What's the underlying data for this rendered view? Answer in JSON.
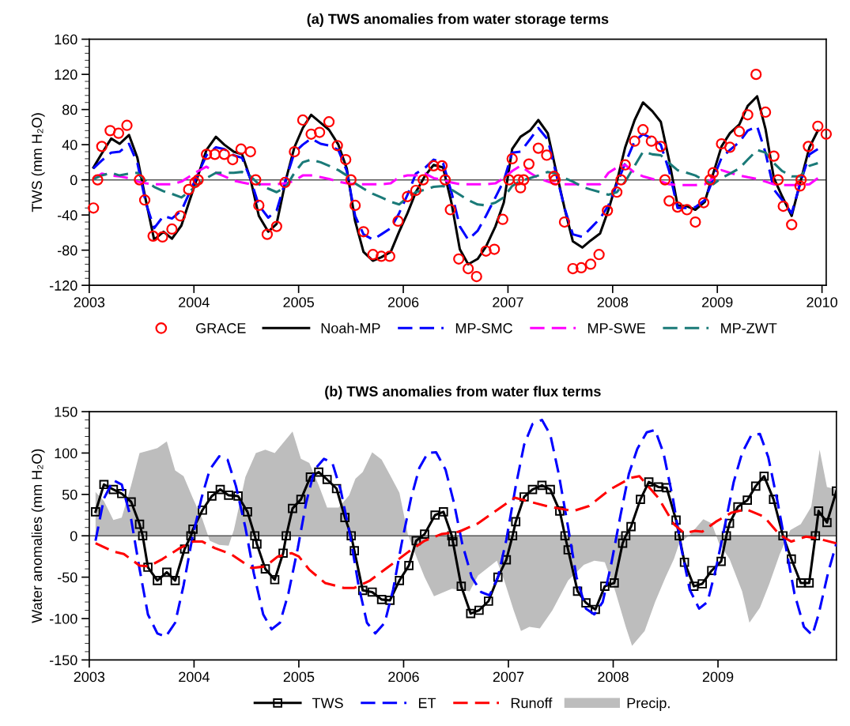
{
  "chart_data": [
    {
      "type": "line",
      "title": "(a) TWS anomalies from water storage terms",
      "ylabel": "TWS (mm H₂O)",
      "xlim": [
        2003,
        2010.04
      ],
      "xticks": [
        2003,
        2004,
        2005,
        2006,
        2007,
        2008,
        2009,
        2010
      ],
      "ylim": [
        -120,
        160
      ],
      "yticks": [
        -120,
        -80,
        -40,
        0,
        40,
        80,
        120,
        160
      ],
      "legend": "bottom",
      "ref_lines": [
        {
          "axis": "y",
          "value": 0,
          "color": "#555555",
          "line_style": "solid"
        }
      ],
      "x": [
        2003.04,
        2003.12,
        2003.21,
        2003.29,
        2003.38,
        2003.46,
        2003.54,
        2003.62,
        2003.71,
        2003.79,
        2003.88,
        2003.96,
        2004.04,
        2004.12,
        2004.21,
        2004.29,
        2004.38,
        2004.46,
        2004.54,
        2004.62,
        2004.71,
        2004.79,
        2004.88,
        2004.96,
        2005.04,
        2005.12,
        2005.21,
        2005.29,
        2005.38,
        2005.46,
        2005.54,
        2005.62,
        2005.71,
        2005.79,
        2005.88,
        2005.96,
        2006.04,
        2006.12,
        2006.21,
        2006.29,
        2006.38,
        2006.46,
        2006.54,
        2006.62,
        2006.71,
        2006.79,
        2006.88,
        2006.96,
        2007.04,
        2007.12,
        2007.21,
        2007.29,
        2007.38,
        2007.46,
        2007.54,
        2007.62,
        2007.71,
        2007.79,
        2007.88,
        2007.96,
        2008.04,
        2008.12,
        2008.21,
        2008.29,
        2008.38,
        2008.46,
        2008.54,
        2008.62,
        2008.71,
        2008.79,
        2008.88,
        2008.96,
        2009.04,
        2009.12,
        2009.21,
        2009.29,
        2009.38,
        2009.46,
        2009.54,
        2009.62,
        2009.71,
        2009.79,
        2009.88,
        2009.96
      ],
      "series": [
        {
          "name": "GRACE",
          "type": "scatter",
          "color": "#ff0000",
          "marker": "circle",
          "x": [
            2003.04,
            2003.08,
            2003.12,
            2003.2,
            2003.28,
            2003.36,
            2003.48,
            2003.53,
            2003.61,
            2003.7,
            2003.79,
            2003.87,
            2003.95,
            2004.01,
            2004.04,
            2004.12,
            2004.2,
            2004.29,
            2004.37,
            2004.45,
            2004.54,
            2004.59,
            2004.62,
            2004.7,
            2004.79,
            2004.87,
            2004.96,
            2005.04,
            2005.12,
            2005.2,
            2005.29,
            2005.37,
            2005.45,
            2005.5,
            2005.54,
            2005.62,
            2005.71,
            2005.79,
            2005.87,
            2005.95,
            2006.04,
            2006.12,
            2006.19,
            2006.29,
            2006.37,
            2006.4,
            2006.45,
            2006.53,
            2006.62,
            2006.7,
            2006.79,
            2006.87,
            2006.95,
            2007.01,
            2007.04,
            2007.1,
            2007.12,
            2007.15,
            2007.2,
            2007.29,
            2007.37,
            2007.44,
            2007.45,
            2007.54,
            2007.62,
            2007.7,
            2007.79,
            2007.87,
            2007.95,
            2008.04,
            2008.08,
            2008.12,
            2008.21,
            2008.29,
            2008.37,
            2008.46,
            2008.5,
            2008.54,
            2008.62,
            2008.71,
            2008.79,
            2008.87,
            2008.93,
            2008.96,
            2009.04,
            2009.12,
            2009.21,
            2009.29,
            2009.37,
            2009.46,
            2009.54,
            2009.58,
            2009.63,
            2009.71,
            2009.79,
            2009.8,
            2009.87,
            2009.96,
            2010.04
          ],
          "values": [
            -32,
            0,
            38,
            56,
            53,
            62,
            0,
            -23,
            -64,
            -65,
            -56,
            -41,
            -11,
            -3,
            0,
            29,
            29,
            29,
            23,
            35,
            32,
            0,
            -29,
            -62,
            -53,
            -3,
            32,
            68,
            52,
            54,
            66,
            39,
            23,
            0,
            -29,
            -59,
            -85,
            -87,
            -87,
            -47,
            -19,
            -12,
            0,
            16,
            16,
            0,
            -34,
            -90,
            -101,
            -110,
            -81,
            -79,
            -45,
            0,
            24,
            0,
            -9,
            0,
            18,
            36,
            28,
            4,
            0,
            -48,
            -101,
            -100,
            -96,
            -85,
            -35,
            -14,
            0,
            17,
            44,
            57,
            44,
            38,
            0,
            -24,
            -31,
            -34,
            -48,
            -26,
            0,
            8,
            41,
            37,
            55,
            74,
            120,
            77,
            27,
            0,
            -30,
            -51,
            -7,
            0,
            38,
            61,
            52
          ]
        },
        {
          "name": "Noah-MP",
          "color": "#000000",
          "line_style": "solid",
          "values": [
            14,
            30,
            47,
            41,
            51,
            25,
            -23,
            -68,
            -59,
            -67,
            -52,
            -23,
            5,
            34,
            49,
            40,
            32,
            29,
            1,
            -41,
            -59,
            -50,
            1,
            37,
            59,
            74,
            65,
            57,
            40,
            13,
            -47,
            -82,
            -92,
            -88,
            -82,
            -59,
            -38,
            -14,
            5,
            17,
            14,
            -26,
            -79,
            -96,
            -90,
            -76,
            -53,
            -26,
            35,
            49,
            56,
            68,
            53,
            10,
            -32,
            -70,
            -77,
            -69,
            -61,
            -34,
            -2,
            37,
            68,
            88,
            78,
            66,
            22,
            -29,
            -30,
            -34,
            -25,
            7,
            38,
            53,
            63,
            84,
            95,
            58,
            2,
            -19,
            -41,
            -4,
            37,
            56
          ]
        },
        {
          "name": "MP-SMC",
          "color": "#0000ff",
          "line_style": "dashed",
          "values": [
            13,
            22,
            31,
            32,
            41,
            19,
            -26,
            -55,
            -41,
            -44,
            -35,
            -14,
            7,
            28,
            37,
            35,
            28,
            25,
            1,
            -29,
            -43,
            -35,
            1,
            31,
            40,
            47,
            41,
            39,
            34,
            10,
            -41,
            -62,
            -68,
            -62,
            -55,
            -38,
            -17,
            7,
            14,
            23,
            19,
            -14,
            -53,
            -68,
            -58,
            -41,
            -20,
            -1,
            31,
            32,
            46,
            59,
            46,
            7,
            -32,
            -62,
            -65,
            -55,
            -44,
            -29,
            -5,
            19,
            44,
            52,
            47,
            40,
            10,
            -32,
            -32,
            -31,
            -23,
            1,
            25,
            34,
            43,
            56,
            61,
            31,
            -11,
            -23,
            -38,
            -5,
            29,
            35
          ]
        },
        {
          "name": "MP-SWE",
          "color": "#ff00ff",
          "line_style": "dashed",
          "values": [
            1,
            7,
            5,
            4,
            2,
            -2,
            -4,
            -5,
            -5,
            -5,
            -2,
            4,
            10,
            15,
            8,
            4,
            -1,
            -3,
            -5,
            -5,
            -5,
            -5,
            -4,
            -1,
            5,
            5,
            3,
            1,
            -2,
            -4,
            -5,
            -5,
            -5,
            -5,
            -4,
            3,
            5,
            5,
            7,
            2,
            0,
            -3,
            -5,
            -5,
            -5,
            -5,
            -4,
            2,
            10,
            16,
            8,
            2,
            -2,
            -5,
            -5,
            -5,
            -5,
            -5,
            -5,
            8,
            14,
            17,
            8,
            4,
            1,
            -2,
            -5,
            -6,
            -6,
            -6,
            -5,
            2,
            11,
            8,
            5,
            3,
            1,
            -2,
            -5,
            -6,
            -6,
            -6,
            -5,
            2
          ]
        },
        {
          "name": "MP-ZWT",
          "color": "#1a7a78",
          "line_style": "dashed",
          "values": [
            1,
            5,
            8,
            5,
            7,
            8,
            -1,
            -8,
            -13,
            -16,
            -20,
            -13,
            -5,
            2,
            8,
            8,
            8,
            9,
            4,
            -5,
            -10,
            -14,
            -8,
            8,
            20,
            23,
            20,
            16,
            11,
            5,
            -4,
            -10,
            -16,
            -20,
            -25,
            -28,
            -20,
            -14,
            -11,
            -8,
            -7,
            -11,
            -17,
            -23,
            -28,
            -29,
            -26,
            -20,
            -7,
            -1,
            2,
            5,
            9,
            7,
            2,
            -2,
            -8,
            -11,
            -14,
            -17,
            -14,
            -2,
            16,
            32,
            29,
            28,
            19,
            11,
            8,
            5,
            -1,
            -5,
            2,
            7,
            13,
            23,
            34,
            31,
            19,
            10,
            4,
            4,
            16,
            19
          ]
        }
      ]
    },
    {
      "type": "line",
      "title": "(b) TWS anomalies from water flux terms",
      "ylabel": "Water anomalies (mm H₂O)",
      "xlim": [
        2003,
        2010.13
      ],
      "xticks": [
        2003,
        2004,
        2005,
        2006,
        2007,
        2008,
        2009
      ],
      "ylim": [
        -150,
        150
      ],
      "yticks": [
        -150,
        -100,
        -50,
        0,
        50,
        100,
        150
      ],
      "legend": "bottom",
      "ref_lines": [
        {
          "axis": "y",
          "value": 0,
          "color": "#555555",
          "line_style": "solid"
        }
      ],
      "series": [
        {
          "name": "TWS",
          "color": "#000000",
          "line_style": "solid",
          "marker": "square",
          "x": [
            2003.06,
            2003.14,
            2003.23,
            2003.31,
            2003.4,
            2003.48,
            2003.51,
            2003.56,
            2003.65,
            2003.74,
            2003.82,
            2003.91,
            2003.97,
            2003.99,
            2004.08,
            2004.17,
            2004.25,
            2004.33,
            2004.42,
            2004.51,
            2004.58,
            2004.6,
            2004.68,
            2004.77,
            2004.85,
            2004.88,
            2004.94,
            2005.02,
            2005.11,
            2005.19,
            2005.27,
            2005.36,
            2005.44,
            2005.5,
            2005.53,
            2005.61,
            2005.7,
            2005.79,
            2005.87,
            2005.96,
            2006.05,
            2006.12,
            2006.2,
            2006.3,
            2006.38,
            2006.46,
            2006.47,
            2006.55,
            2006.64,
            2006.72,
            2006.81,
            2006.9,
            2006.98,
            2007.04,
            2007.07,
            2007.15,
            2007.23,
            2007.32,
            2007.4,
            2007.49,
            2007.54,
            2007.57,
            2007.66,
            2007.74,
            2007.83,
            2007.92,
            2008.01,
            2008.09,
            2008.12,
            2008.17,
            2008.26,
            2008.34,
            2008.43,
            2008.51,
            2008.6,
            2008.63,
            2008.68,
            2008.77,
            2008.85,
            2008.94,
            2009.03,
            2009.08,
            2009.11,
            2009.19,
            2009.28,
            2009.36,
            2009.44,
            2009.53,
            2009.62,
            2009.7,
            2009.79,
            2009.87,
            2009.93,
            2009.96,
            2010.04,
            2010.13
          ],
          "values": [
            29,
            62,
            56,
            51,
            41,
            14,
            0,
            -38,
            -54,
            -44,
            -54,
            -16,
            0,
            8,
            31,
            48,
            56,
            49,
            48,
            29,
            0,
            -10,
            -40,
            -53,
            -21,
            0,
            33,
            44,
            71,
            77,
            68,
            57,
            22,
            0,
            -18,
            -66,
            -68,
            -77,
            -78,
            -54,
            -36,
            -6,
            2,
            25,
            29,
            0,
            -7,
            -61,
            -94,
            -90,
            -79,
            -50,
            -29,
            0,
            17,
            47,
            56,
            61,
            56,
            30,
            0,
            -17,
            -67,
            -81,
            -89,
            -61,
            -57,
            -9,
            0,
            11,
            44,
            65,
            59,
            58,
            19,
            0,
            -32,
            -61,
            -58,
            -42,
            -31,
            0,
            15,
            35,
            43,
            60,
            72,
            44,
            0,
            -28,
            -57,
            -57,
            0,
            30,
            16,
            54
          ]
        },
        {
          "name": "ET",
          "color": "#0000ff",
          "line_style": "dashed",
          "x": [
            2003.06,
            2003.14,
            2003.23,
            2003.31,
            2003.4,
            2003.48,
            2003.56,
            2003.65,
            2003.73,
            2003.82,
            2003.9,
            2003.98,
            2004.07,
            2004.15,
            2004.24,
            2004.32,
            2004.4,
            2004.49,
            2004.57,
            2004.66,
            2004.74,
            2004.82,
            2004.9,
            2004.99,
            2005.07,
            2005.15,
            2005.24,
            2005.32,
            2005.4,
            2005.49,
            2005.57,
            2005.65,
            2005.73,
            2005.82,
            2005.9,
            2005.98,
            2006.07,
            2006.15,
            2006.23,
            2006.31,
            2006.4,
            2006.48,
            2006.56,
            2006.65,
            2006.74,
            2006.82,
            2006.9,
            2006.98,
            2007.07,
            2007.15,
            2007.23,
            2007.32,
            2007.4,
            2007.48,
            2007.57,
            2007.65,
            2007.74,
            2007.82,
            2007.9,
            2007.98,
            2008.07,
            2008.15,
            2008.23,
            2008.32,
            2008.4,
            2008.48,
            2008.57,
            2008.65,
            2008.73,
            2008.82,
            2008.9,
            2008.98,
            2009.07,
            2009.15,
            2009.23,
            2009.32,
            2009.4,
            2009.48,
            2009.57,
            2009.65,
            2009.73,
            2009.82,
            2009.9,
            2009.96,
            2010.05,
            2010.13
          ],
          "values": [
            -6,
            45,
            67,
            62,
            20,
            -40,
            -95,
            -118,
            -122,
            -105,
            -60,
            -5,
            45,
            80,
            96,
            92,
            60,
            10,
            -45,
            -95,
            -113,
            -105,
            -70,
            -15,
            40,
            80,
            93,
            88,
            55,
            0,
            -60,
            -105,
            -118,
            -105,
            -65,
            -10,
            45,
            82,
            100,
            101,
            80,
            40,
            -10,
            -50,
            -68,
            -72,
            -50,
            -5,
            60,
            110,
            135,
            140,
            122,
            75,
            10,
            -50,
            -88,
            -95,
            -80,
            -35,
            25,
            75,
            105,
            125,
            128,
            100,
            45,
            -15,
            -65,
            -88,
            -80,
            -40,
            15,
            65,
            100,
            122,
            123,
            95,
            40,
            -15,
            -70,
            -110,
            -120,
            -95,
            -45,
            -9
          ]
        },
        {
          "name": "Runoff",
          "color": "#ff0000",
          "line_style": "dashed",
          "x": [
            2003.06,
            2003.23,
            2003.33,
            2003.48,
            2003.57,
            2003.7,
            2003.85,
            2003.99,
            2004.08,
            2004.2,
            2004.35,
            2004.55,
            2004.68,
            2004.8,
            2004.93,
            2005.0,
            2005.1,
            2005.25,
            2005.43,
            2005.53,
            2005.68,
            2005.85,
            2006.05,
            2006.2,
            2006.36,
            2006.53,
            2006.71,
            2006.89,
            2007.06,
            2007.21,
            2007.39,
            2007.62,
            2007.77,
            2007.97,
            2008.17,
            2008.25,
            2008.43,
            2008.58,
            2008.68,
            2008.78,
            2008.85,
            2008.98,
            2009.13,
            2009.27,
            2009.44,
            2009.59,
            2009.7,
            2009.84,
            2009.94,
            2010.13
          ],
          "values": [
            -9,
            -19,
            -22,
            -36,
            -37,
            -28,
            -16,
            -7,
            -7,
            -15,
            -22,
            -39,
            -37,
            -25,
            -21,
            -25,
            -41,
            -57,
            -63,
            -63,
            -54,
            -38,
            -19,
            -6,
            2,
            5,
            15,
            31,
            46,
            41,
            35,
            30,
            36,
            56,
            70,
            72,
            46,
            14,
            3,
            6,
            5,
            17,
            28,
            32,
            23,
            1,
            -7,
            -1,
            -3,
            -9
          ]
        },
        {
          "name": "Precip.",
          "type": "area",
          "color": "#bdbdbd",
          "x": [
            2003.06,
            2003.14,
            2003.23,
            2003.31,
            2003.4,
            2003.48,
            2003.57,
            2003.65,
            2003.74,
            2003.82,
            2003.9,
            2003.99,
            2004.08,
            2004.15,
            2004.24,
            2004.33,
            2004.38,
            2004.49,
            2004.59,
            2004.68,
            2004.77,
            2004.94,
            2005.02,
            2005.1,
            2005.19,
            2005.27,
            2005.38,
            2005.48,
            2005.54,
            2005.61,
            2005.7,
            2005.79,
            2005.88,
            2005.96,
            2006.04,
            2006.13,
            2006.2,
            2006.29,
            2006.46,
            2006.63,
            2006.71,
            2006.89,
            2006.96,
            2007.05,
            2007.12,
            2007.2,
            2007.3,
            2007.42,
            2007.57,
            2007.72,
            2007.82,
            2007.92,
            2008.02,
            2008.12,
            2008.18,
            2008.3,
            2008.4,
            2008.5,
            2008.58,
            2008.63,
            2008.73,
            2008.86,
            2008.94,
            2009.01,
            2009.11,
            2009.23,
            2009.3,
            2009.4,
            2009.49,
            2009.59,
            2009.69,
            2009.79,
            2009.89,
            2009.97,
            2010.04,
            2010.13
          ],
          "values": [
            53,
            42,
            19,
            22,
            61,
            100,
            103,
            106,
            114,
            79,
            72,
            45,
            20,
            -6,
            -11,
            -12,
            7,
            71,
            100,
            104,
            100,
            126,
            93,
            88,
            61,
            34,
            34,
            49,
            69,
            77,
            101,
            92,
            71,
            52,
            2,
            -28,
            -50,
            -73,
            -64,
            -67,
            -48,
            -30,
            -54,
            -90,
            -115,
            -110,
            -112,
            -90,
            -54,
            -35,
            -30,
            -32,
            -67,
            -110,
            -133,
            -115,
            -80,
            -50,
            -28,
            -9,
            1,
            20,
            15,
            -9,
            -28,
            -67,
            -105,
            -87,
            -58,
            -22,
            7,
            14,
            35,
            104,
            59,
            56
          ]
        }
      ]
    }
  ]
}
